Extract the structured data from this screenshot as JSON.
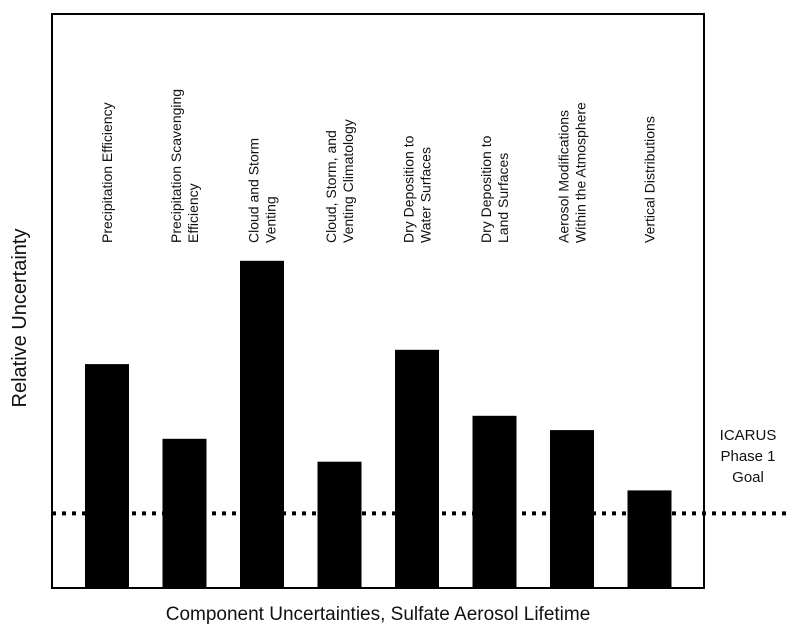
{
  "chart_data": {
    "type": "bar",
    "title": "",
    "xlabel": "Component Uncertainties, Sulfate Aerosol Lifetime",
    "ylabel": "Relative Uncertainty",
    "ylim": [
      0,
      100
    ],
    "grid": false,
    "categories": [
      [
        "Precipitation Efficiency"
      ],
      [
        "Precipitation Scavenging",
        "Efficiency"
      ],
      [
        "Cloud and Storm",
        "Venting"
      ],
      [
        "Cloud, Storm, and",
        "Venting Climatology"
      ],
      [
        "Dry Deposition to",
        "Water Surfaces"
      ],
      [
        "Dry Deposition to",
        "Land Surfaces"
      ],
      [
        "Aerosol Modifications",
        "Within the Atmosphere"
      ],
      [
        "Vertical Distributions"
      ]
    ],
    "values": [
      39,
      26,
      57,
      22,
      41.5,
      30,
      27.5,
      17
    ],
    "reference_line": {
      "value": 13,
      "label": [
        "ICARUS",
        "Phase 1",
        "Goal"
      ],
      "style": "dotted"
    },
    "colors": {
      "bar": "#000000",
      "line": "#000000",
      "frame": "#000000"
    }
  }
}
